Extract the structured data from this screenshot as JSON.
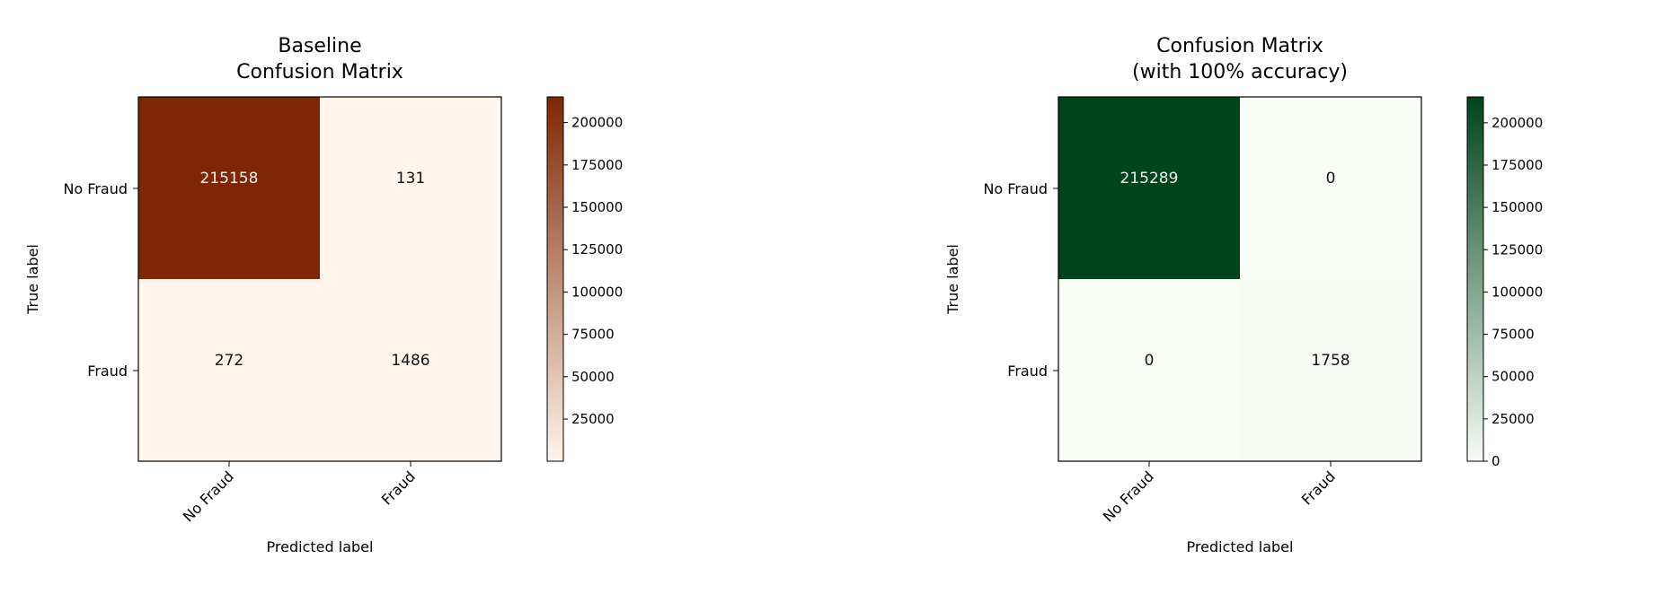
{
  "chart_data": [
    {
      "type": "heatmap",
      "title": "Baseline\nConfusion Matrix",
      "xlabel": "Predicted label",
      "ylabel": "True label",
      "x_categories": [
        "No Fraud",
        "Fraud"
      ],
      "y_categories": [
        "No Fraud",
        "Fraud"
      ],
      "values": [
        [
          215158,
          131
        ],
        [
          272,
          1486
        ]
      ],
      "colormap": "Oranges",
      "colormap_low": "#fff5eb",
      "colormap_high": "#7f2704",
      "colorbar_ticks": [
        25000,
        50000,
        75000,
        100000,
        125000,
        150000,
        175000,
        200000
      ],
      "colorbar_range": [
        131,
        215158
      ]
    },
    {
      "type": "heatmap",
      "title": "Confusion Matrix\n(with 100% accuracy)",
      "xlabel": "Predicted label",
      "ylabel": "True label",
      "x_categories": [
        "No Fraud",
        "Fraud"
      ],
      "y_categories": [
        "No Fraud",
        "Fraud"
      ],
      "values": [
        [
          215289,
          0
        ],
        [
          0,
          1758
        ]
      ],
      "colormap": "Greens",
      "colormap_low": "#f7fcf5",
      "colormap_high": "#00441b",
      "colorbar_ticks": [
        0,
        25000,
        50000,
        75000,
        100000,
        125000,
        150000,
        175000,
        200000
      ],
      "colorbar_range": [
        0,
        215289
      ]
    }
  ]
}
